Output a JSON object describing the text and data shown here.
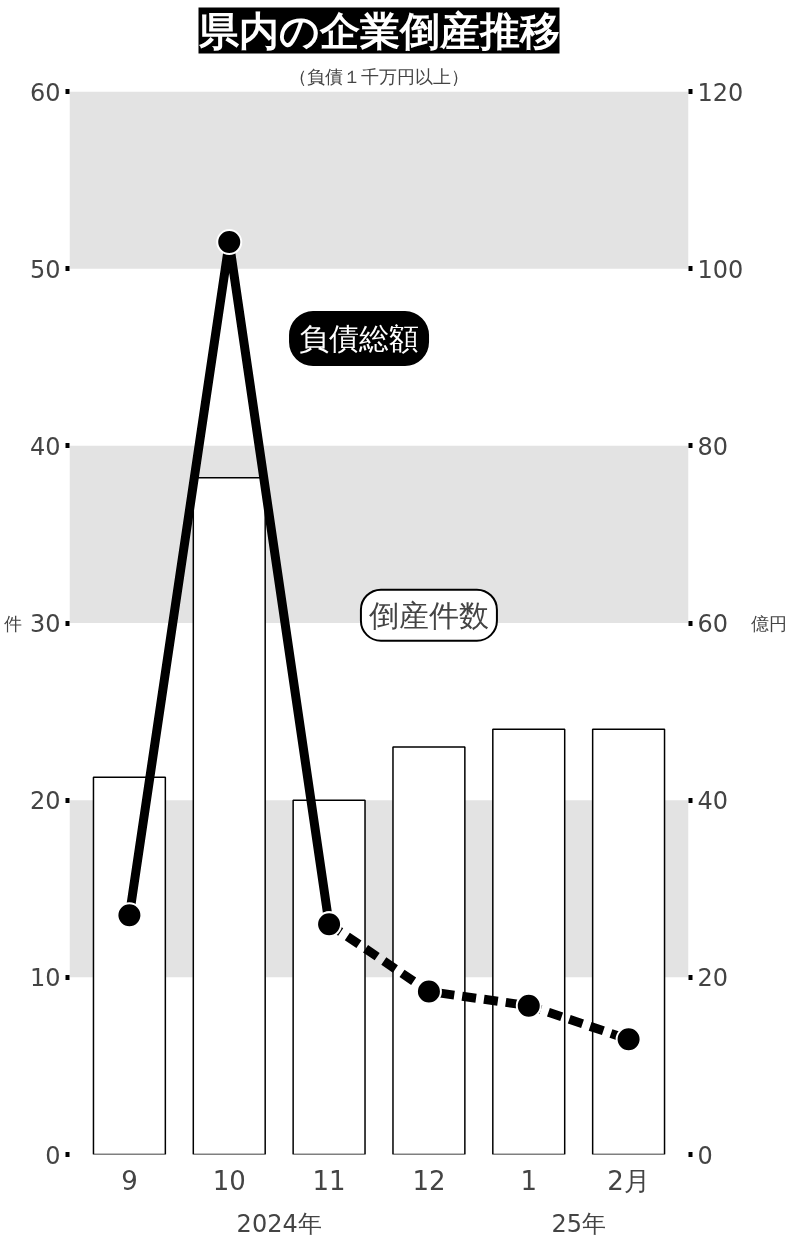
{
  "chart_data": {
    "type": "bar",
    "title": "県内の企業倒産推移",
    "subtitle": "（負債１千万円以上）",
    "ylabel": "件",
    "y2label": "億円",
    "categories": [
      "9",
      "10",
      "11",
      "12",
      "1",
      "2月"
    ],
    "series": [
      {
        "name": "倒産件数",
        "color": "#ffffff",
        "values": [
          21.3,
          38.2,
          20,
          23,
          24,
          24
        ]
      },
      {
        "name": "負債総額",
        "type": "line",
        "axis": "y2",
        "color": "#000000",
        "line_style": "solid",
        "marker": "circle",
        "values": [
          27,
          103,
          26,
          null,
          null,
          null
        ]
      },
      {
        "type": "line",
        "axis": "y2",
        "color": "#000000",
        "line_style": "dashed",
        "marker": "circle",
        "values": [
          null,
          null,
          26,
          18.4,
          16.8,
          13
        ]
      }
    ],
    "ylim": [
      0,
      60
    ],
    "yticks": [
      0,
      10,
      20,
      30,
      40,
      50,
      60
    ],
    "y2lim": [
      0,
      120
    ],
    "y2ticks": [
      0,
      20,
      40,
      60,
      80,
      100,
      120
    ],
    "bands": [
      {
        "axis": "y",
        "from": 10,
        "to": 20,
        "color": "#e3e3e3"
      },
      {
        "axis": "y",
        "from": 30,
        "to": 40,
        "color": "#e3e3e3"
      },
      {
        "axis": "y",
        "from": 50,
        "to": 60,
        "color": "#e3e3e3"
      }
    ],
    "annotations": [
      "2024年",
      "25年"
    ],
    "grid": false
  }
}
